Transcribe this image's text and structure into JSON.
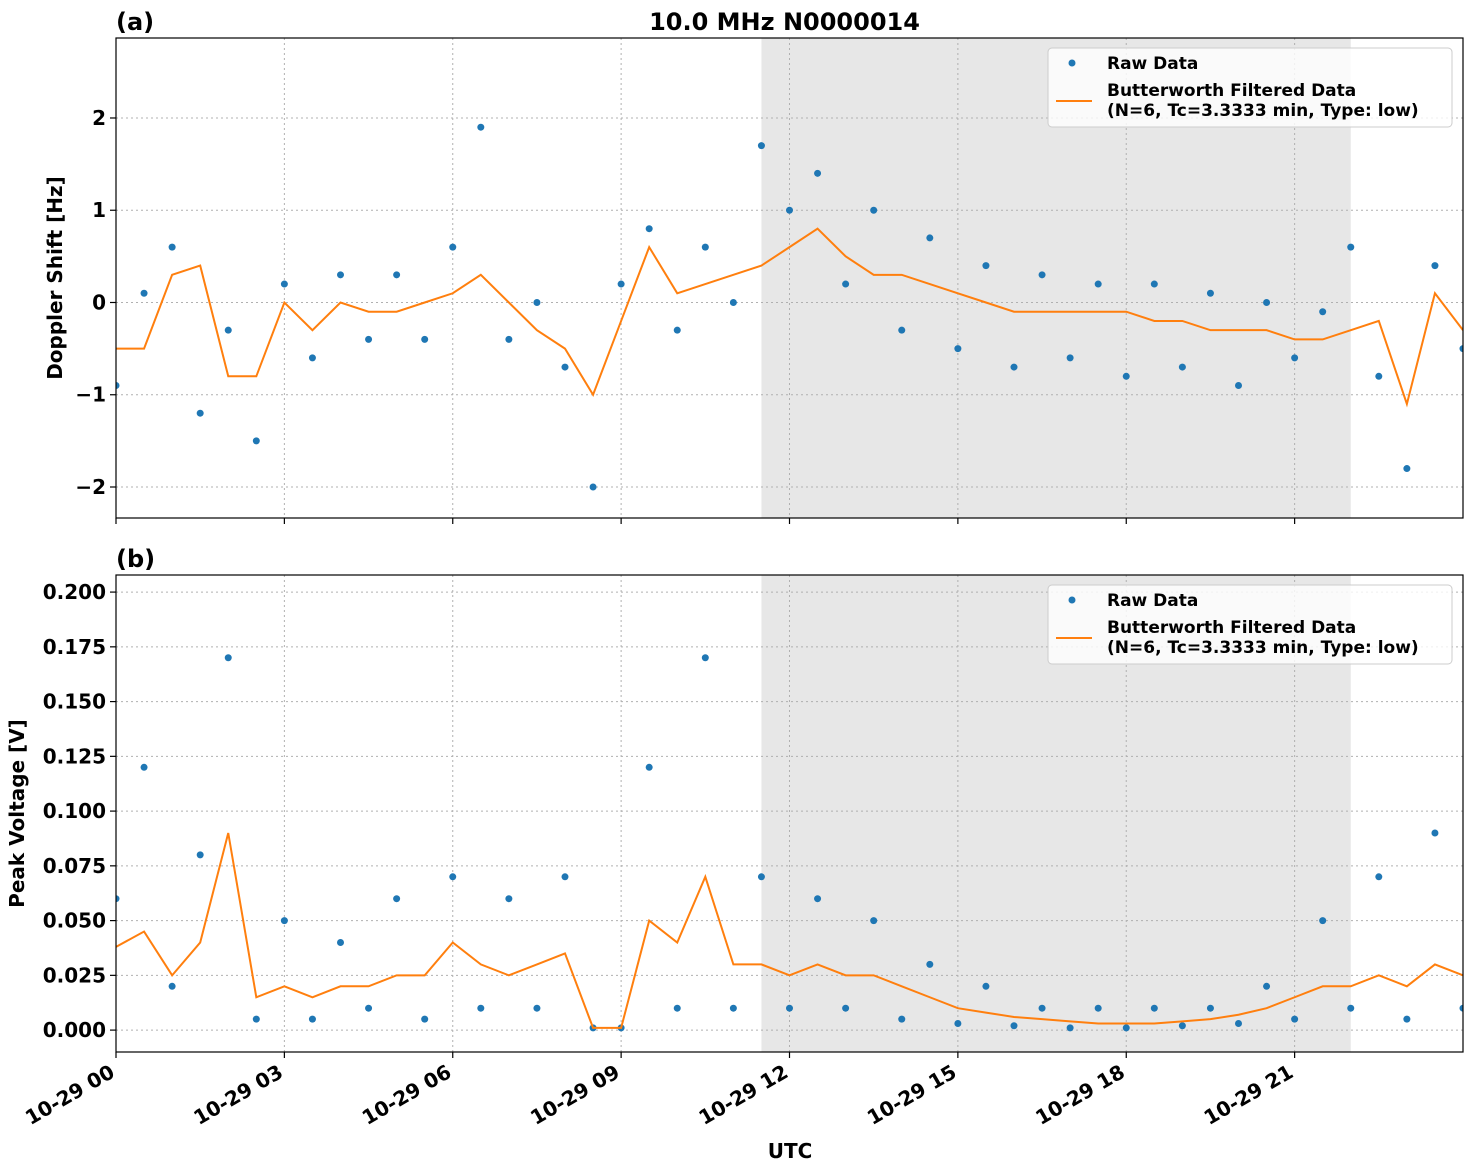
{
  "chart_data": [
    {
      "type": "scatter",
      "title": "10.0 MHz N0000014",
      "panel_label": "(a)",
      "ylabel": "Doppler Shift [Hz]",
      "x": [
        0,
        0.5,
        1,
        1.5,
        2,
        2.5,
        3,
        3.5,
        4,
        4.5,
        5,
        5.5,
        6,
        6.5,
        7,
        7.5,
        8,
        8.5,
        9,
        9.5,
        10,
        10.5,
        11,
        11.5,
        12,
        12.5,
        13,
        13.5,
        14,
        14.5,
        15,
        15.5,
        16,
        16.5,
        17,
        17.5,
        18,
        18.5,
        19,
        19.5,
        20,
        20.5,
        21,
        21.5,
        22,
        22.5,
        23,
        23.5,
        24
      ],
      "series": [
        {
          "name": "Raw Data",
          "color": "#1f77b4",
          "mode": "markers",
          "values": [
            -0.9,
            0.1,
            0.6,
            -1.2,
            -0.3,
            -1.5,
            0.2,
            -0.6,
            0.3,
            -0.4,
            0.3,
            -0.4,
            0.6,
            1.9,
            -0.4,
            0.0,
            -0.7,
            -2.0,
            0.2,
            0.8,
            -0.3,
            0.6,
            0.0,
            1.7,
            1.0,
            1.4,
            0.2,
            1.0,
            -0.3,
            0.7,
            -0.5,
            0.4,
            -0.7,
            0.3,
            -0.6,
            0.2,
            -0.8,
            0.2,
            -0.7,
            0.1,
            -0.9,
            0.0,
            -0.6,
            -0.1,
            0.6,
            -0.8,
            -1.8,
            0.4,
            -0.5
          ]
        },
        {
          "name": "Butterworth Filtered Data\n(N=6, Tc=3.3333 min, Type: low)",
          "color": "#ff7f0e",
          "mode": "lines",
          "values": [
            -0.5,
            -0.5,
            0.3,
            0.4,
            -0.8,
            -0.8,
            0.0,
            -0.3,
            0.0,
            -0.1,
            -0.1,
            0.0,
            0.1,
            0.3,
            0.0,
            -0.3,
            -0.5,
            -1.0,
            -0.2,
            0.6,
            0.1,
            0.2,
            0.3,
            0.4,
            0.6,
            0.8,
            0.5,
            0.3,
            0.3,
            0.2,
            0.1,
            0.0,
            -0.1,
            -0.1,
            -0.1,
            -0.1,
            -0.1,
            -0.2,
            -0.2,
            -0.3,
            -0.3,
            -0.3,
            -0.4,
            -0.4,
            -0.3,
            -0.2,
            -1.1,
            0.1,
            -0.3
          ]
        }
      ],
      "xlim": [
        0,
        24
      ],
      "xticks": [
        0,
        3,
        6,
        9,
        12,
        15,
        18,
        21
      ],
      "show_xtick_labels": false,
      "ylim": [
        -2.336,
        2.867
      ],
      "yticks": [
        {
          "value": -2,
          "label": "−2"
        },
        {
          "value": -1,
          "label": "−1"
        },
        0,
        1,
        2
      ],
      "shade": [
        11.5,
        22
      ],
      "grid": true,
      "legend": "upper right"
    },
    {
      "type": "scatter",
      "panel_label": "(b)",
      "ylabel": "Peak Voltage [V]",
      "xlabel": "UTC",
      "x": [
        0,
        0.5,
        1,
        1.5,
        2,
        2.5,
        3,
        3.5,
        4,
        4.5,
        5,
        5.5,
        6,
        6.5,
        7,
        7.5,
        8,
        8.5,
        9,
        9.5,
        10,
        10.5,
        11,
        11.5,
        12,
        12.5,
        13,
        13.5,
        14,
        14.5,
        15,
        15.5,
        16,
        16.5,
        17,
        17.5,
        18,
        18.5,
        19,
        19.5,
        20,
        20.5,
        21,
        21.5,
        22,
        22.5,
        23,
        23.5,
        24
      ],
      "series": [
        {
          "name": "Raw Data",
          "color": "#1f77b4",
          "mode": "markers",
          "values": [
            0.06,
            0.12,
            0.02,
            0.08,
            0.17,
            0.005,
            0.05,
            0.005,
            0.04,
            0.01,
            0.06,
            0.005,
            0.07,
            0.01,
            0.06,
            0.01,
            0.07,
            0.001,
            0.001,
            0.12,
            0.01,
            0.17,
            0.01,
            0.07,
            0.01,
            0.06,
            0.01,
            0.05,
            0.005,
            0.03,
            0.003,
            0.02,
            0.002,
            0.01,
            0.001,
            0.01,
            0.001,
            0.01,
            0.002,
            0.01,
            0.003,
            0.02,
            0.005,
            0.05,
            0.01,
            0.07,
            0.005,
            0.09,
            0.01
          ]
        },
        {
          "name": "Butterworth Filtered Data\n(N=6, Tc=3.3333 min, Type: low)",
          "color": "#ff7f0e",
          "mode": "lines",
          "values": [
            0.038,
            0.045,
            0.025,
            0.04,
            0.09,
            0.015,
            0.02,
            0.015,
            0.02,
            0.02,
            0.025,
            0.025,
            0.04,
            0.03,
            0.025,
            0.03,
            0.035,
            0.001,
            0.001,
            0.05,
            0.04,
            0.07,
            0.03,
            0.03,
            0.025,
            0.03,
            0.025,
            0.025,
            0.02,
            0.015,
            0.01,
            0.008,
            0.006,
            0.005,
            0.004,
            0.003,
            0.003,
            0.003,
            0.004,
            0.005,
            0.007,
            0.01,
            0.015,
            0.02,
            0.02,
            0.025,
            0.02,
            0.03,
            0.025
          ]
        }
      ],
      "xlim": [
        0,
        24
      ],
      "xticks": [
        {
          "value": 0,
          "label": "10-29 00"
        },
        {
          "value": 3,
          "label": "10-29 03"
        },
        {
          "value": 6,
          "label": "10-29 06"
        },
        {
          "value": 9,
          "label": "10-29 09"
        },
        {
          "value": 12,
          "label": "10-29 12"
        },
        {
          "value": 15,
          "label": "10-29 15"
        },
        {
          "value": 18,
          "label": "10-29 18"
        },
        {
          "value": 21,
          "label": "10-29 21"
        }
      ],
      "show_xtick_labels": true,
      "ylim": [
        -0.01,
        0.2078
      ],
      "yticks": [
        {
          "value": 0,
          "label": "0.000"
        },
        {
          "value": 0.025,
          "label": "0.025"
        },
        {
          "value": 0.05,
          "label": "0.050"
        },
        {
          "value": 0.075,
          "label": "0.075"
        },
        {
          "value": 0.1,
          "label": "0.100"
        },
        {
          "value": 0.125,
          "label": "0.125"
        },
        {
          "value": 0.15,
          "label": "0.150"
        },
        {
          "value": 0.175,
          "label": "0.175"
        },
        {
          "value": 0.2,
          "label": "0.200"
        }
      ],
      "shade": [
        11.5,
        22
      ],
      "grid": true,
      "legend": "upper right"
    }
  ]
}
